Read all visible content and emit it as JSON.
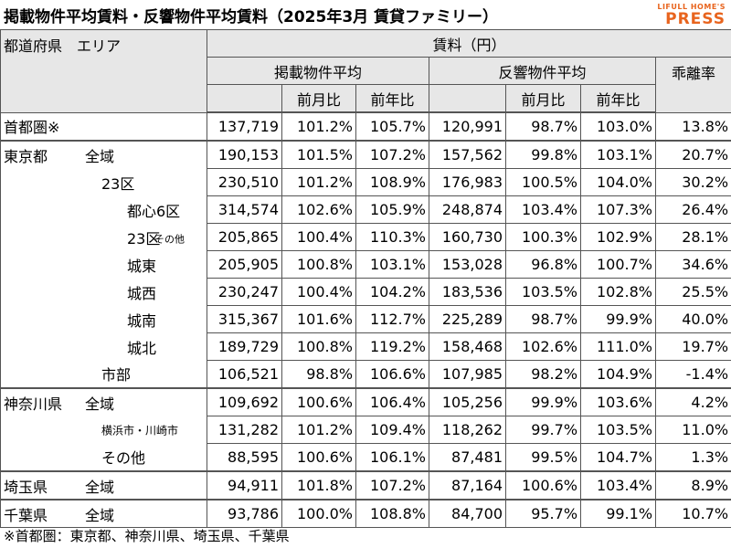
{
  "title": "掲載物件平均賃料・反響物件平均賃料（2025年3月 賃貸ファミリー）",
  "logo": {
    "top": "LIFULL HOME'S",
    "bottom": "PRESS"
  },
  "headers": {
    "pref_area": "都道府県　エリア",
    "rent": "賃料（円）",
    "listed_avg": "掲載物件平均",
    "response_avg": "反響物件平均",
    "mom": "前月比",
    "yoy": "前年比",
    "divergence": "乖離率"
  },
  "rows": [
    {
      "pref": "首都圏※",
      "area": "",
      "listed": "137,719",
      "listed_mom": "101.2%",
      "listed_yoy": "105.7%",
      "resp": "120,991",
      "resp_mom": "98.7%",
      "resp_yoy": "103.0%",
      "div": "13.8%"
    },
    {
      "pref": "東京都",
      "area": "全域",
      "listed": "190,153",
      "listed_mom": "101.5%",
      "listed_yoy": "107.2%",
      "resp": "157,562",
      "resp_mom": "99.8%",
      "resp_yoy": "103.1%",
      "div": "20.7%"
    },
    {
      "pref": "",
      "area": "23区",
      "listed": "230,510",
      "listed_mom": "101.2%",
      "listed_yoy": "108.9%",
      "resp": "176,983",
      "resp_mom": "100.5%",
      "resp_yoy": "104.0%",
      "div": "30.2%"
    },
    {
      "pref": "",
      "area": "都心6区",
      "listed": "314,574",
      "listed_mom": "102.6%",
      "listed_yoy": "105.9%",
      "resp": "248,874",
      "resp_mom": "103.4%",
      "resp_yoy": "107.3%",
      "div": "26.4%"
    },
    {
      "pref": "",
      "area": "23区",
      "area_small": "その他",
      "listed": "205,865",
      "listed_mom": "100.4%",
      "listed_yoy": "110.3%",
      "resp": "160,730",
      "resp_mom": "100.3%",
      "resp_yoy": "102.9%",
      "div": "28.1%"
    },
    {
      "pref": "",
      "area": "城東",
      "listed": "205,905",
      "listed_mom": "100.8%",
      "listed_yoy": "103.1%",
      "resp": "153,028",
      "resp_mom": "96.8%",
      "resp_yoy": "100.7%",
      "div": "34.6%"
    },
    {
      "pref": "",
      "area": "城西",
      "listed": "230,247",
      "listed_mom": "100.4%",
      "listed_yoy": "104.2%",
      "resp": "183,536",
      "resp_mom": "103.5%",
      "resp_yoy": "102.8%",
      "div": "25.5%"
    },
    {
      "pref": "",
      "area": "城南",
      "listed": "315,367",
      "listed_mom": "101.6%",
      "listed_yoy": "112.7%",
      "resp": "225,289",
      "resp_mom": "98.7%",
      "resp_yoy": "99.9%",
      "div": "40.0%"
    },
    {
      "pref": "",
      "area": "城北",
      "listed": "189,729",
      "listed_mom": "100.8%",
      "listed_yoy": "119.2%",
      "resp": "158,468",
      "resp_mom": "102.6%",
      "resp_yoy": "111.0%",
      "div": "19.7%"
    },
    {
      "pref": "",
      "area": "市部",
      "listed": "106,521",
      "listed_mom": "98.8%",
      "listed_yoy": "106.6%",
      "resp": "107,985",
      "resp_mom": "98.2%",
      "resp_yoy": "104.9%",
      "div": "-1.4%"
    },
    {
      "pref": "神奈川県",
      "area": "全域",
      "listed": "109,692",
      "listed_mom": "100.6%",
      "listed_yoy": "106.4%",
      "resp": "105,256",
      "resp_mom": "99.9%",
      "resp_yoy": "103.6%",
      "div": "4.2%"
    },
    {
      "pref": "",
      "area": "横浜市・川崎市",
      "listed": "131,282",
      "listed_mom": "101.2%",
      "listed_yoy": "109.4%",
      "resp": "118,262",
      "resp_mom": "99.7%",
      "resp_yoy": "103.5%",
      "div": "11.0%"
    },
    {
      "pref": "",
      "area": "その他",
      "listed": "88,595",
      "listed_mom": "100.6%",
      "listed_yoy": "106.1%",
      "resp": "87,481",
      "resp_mom": "99.5%",
      "resp_yoy": "104.7%",
      "div": "1.3%"
    },
    {
      "pref": "埼玉県",
      "area": "全域",
      "listed": "94,911",
      "listed_mom": "101.8%",
      "listed_yoy": "107.2%",
      "resp": "87,164",
      "resp_mom": "100.6%",
      "resp_yoy": "103.4%",
      "div": "8.9%"
    },
    {
      "pref": "千葉県",
      "area": "全域",
      "listed": "93,786",
      "listed_mom": "100.0%",
      "listed_yoy": "108.8%",
      "resp": "84,700",
      "resp_mom": "95.7%",
      "resp_yoy": "99.1%",
      "div": "10.7%"
    }
  ],
  "note": "※首都圏：東京都、神奈川県、埼玉県、千葉県"
}
